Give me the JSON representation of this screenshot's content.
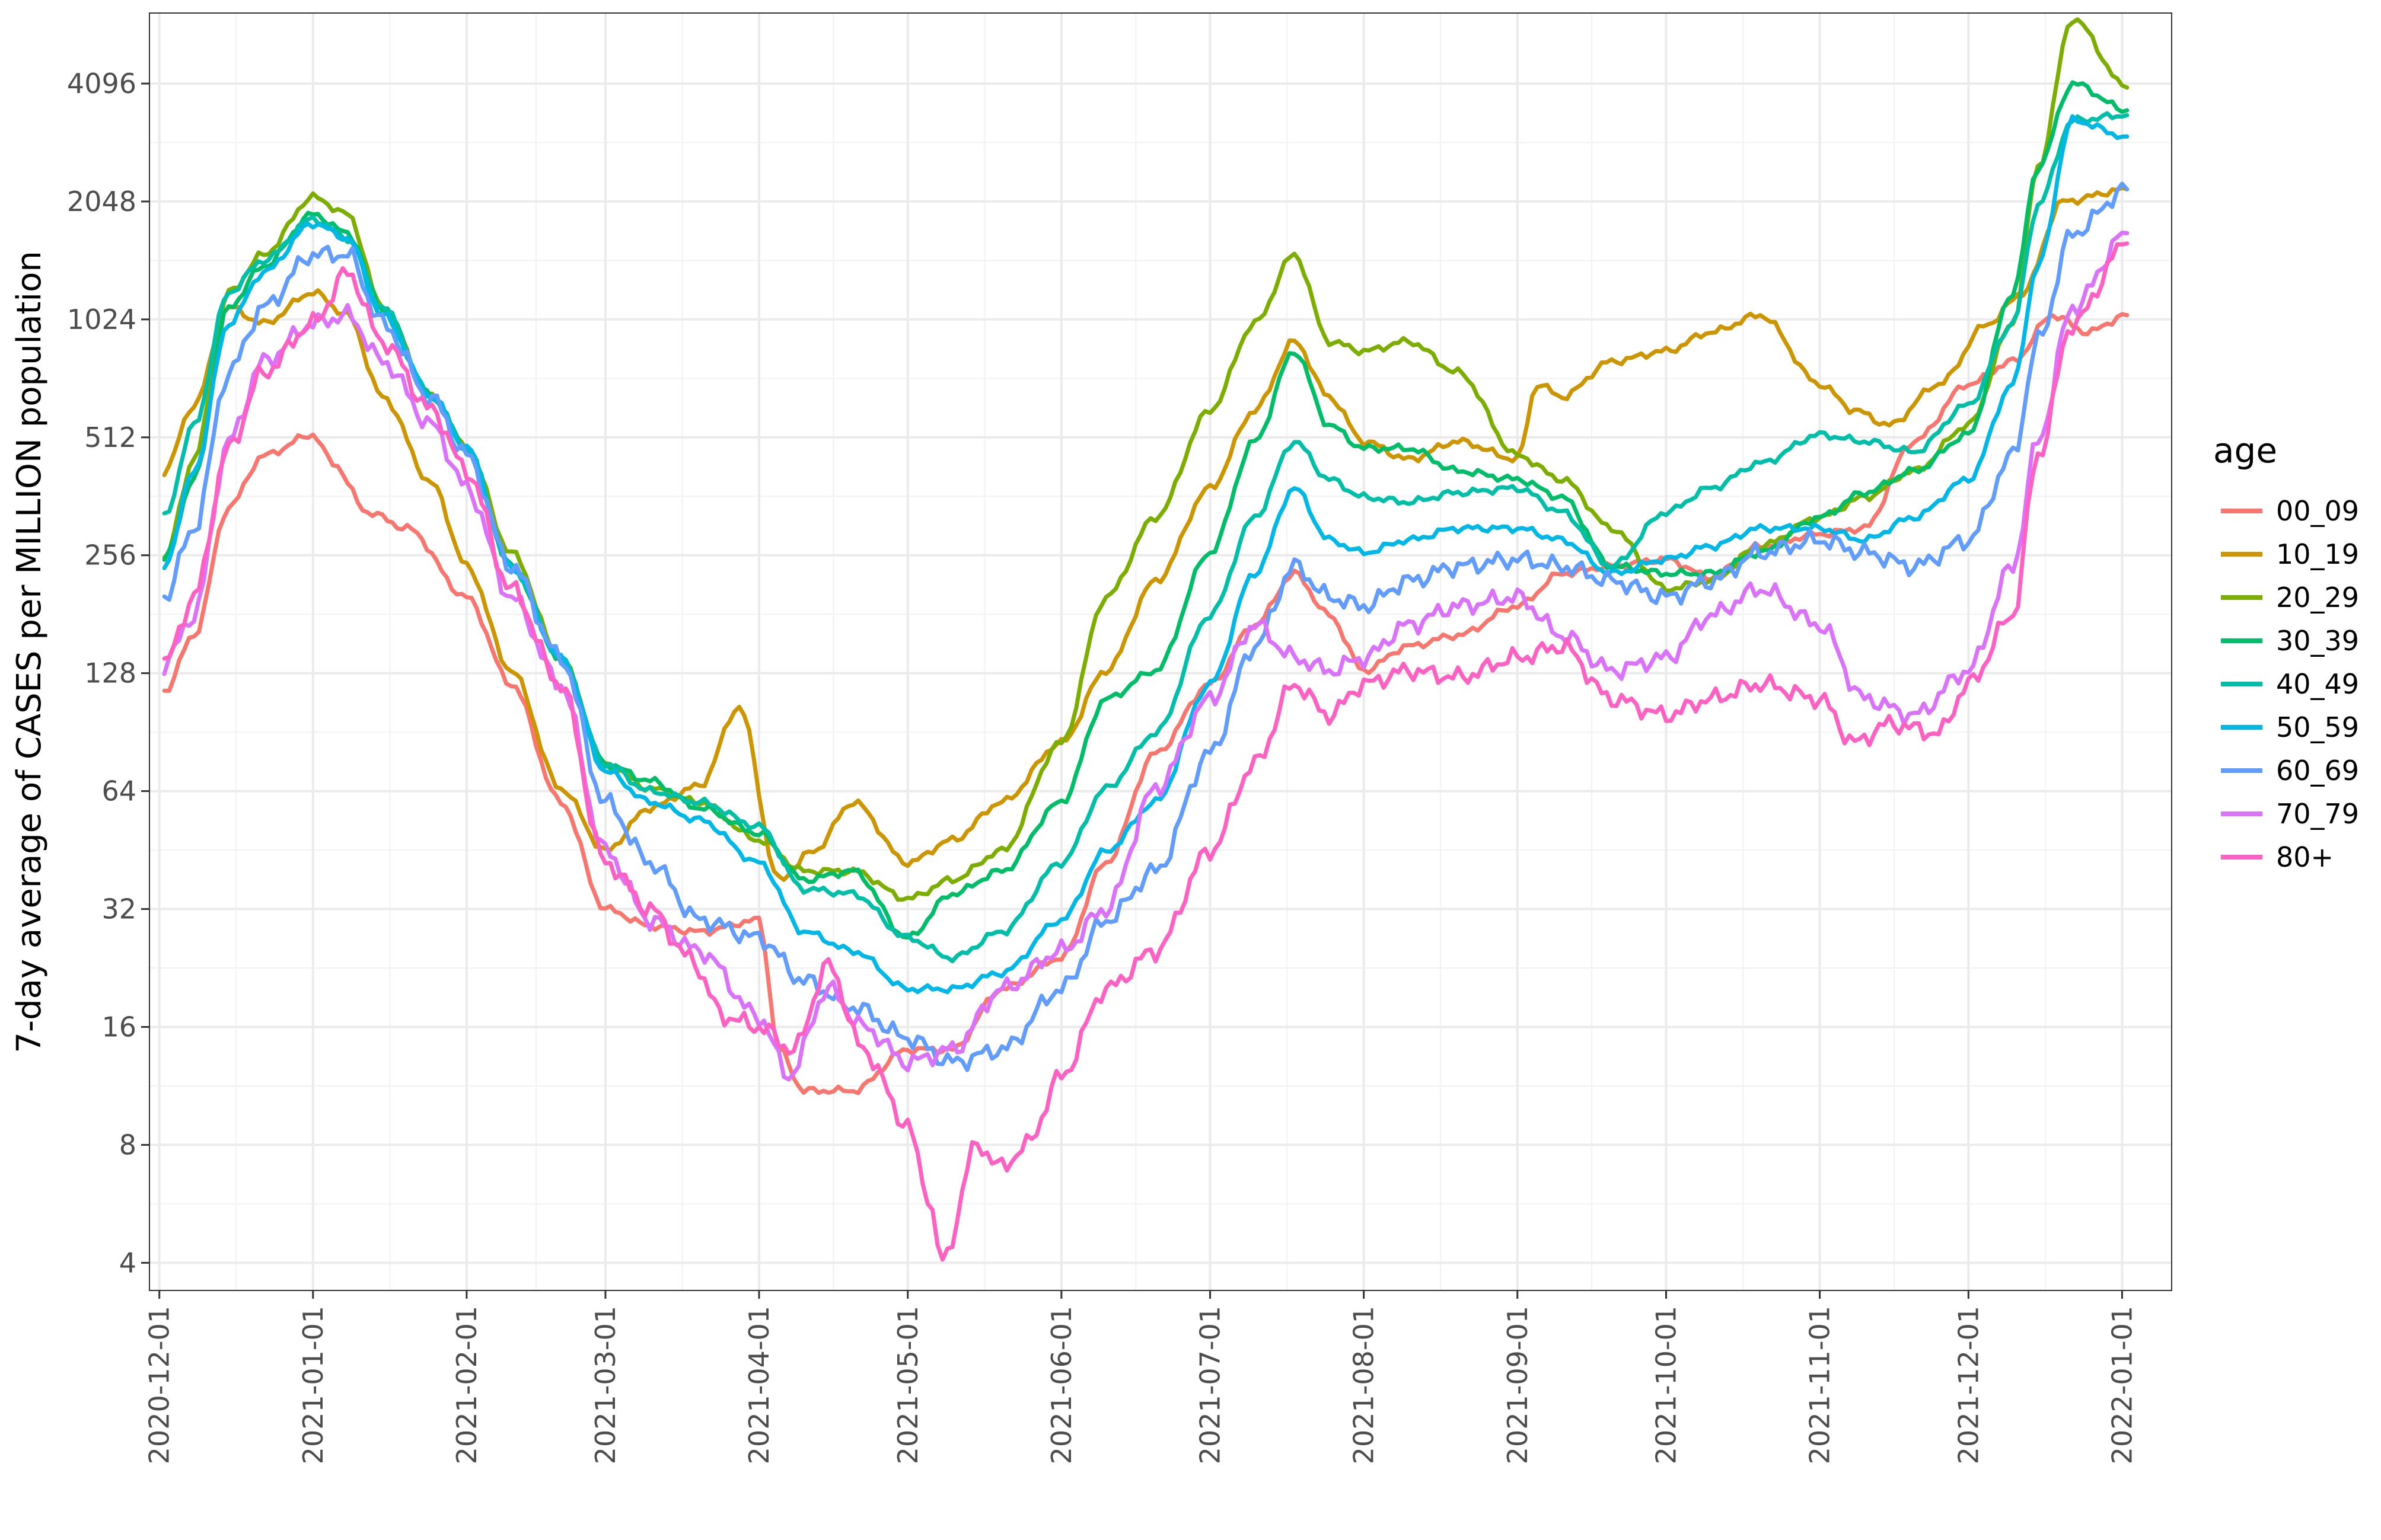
{
  "chart_data": {
    "type": "line",
    "title": "",
    "xlabel": "",
    "ylabel": "7-day average of CASES per MILLION population",
    "y_scale": "log2",
    "ylim": [
      3.4,
      6200
    ],
    "xlim": [
      "2020-11-29",
      "2022-01-11"
    ],
    "y_ticks": [
      4,
      8,
      16,
      32,
      64,
      128,
      256,
      512,
      1024,
      2048,
      4096
    ],
    "y_tick_labels": [
      "4",
      "8",
      "16",
      "32",
      "64",
      "128",
      "256",
      "512",
      "1024",
      "2048",
      "4096"
    ],
    "x_ticks": [
      "2020-12-01",
      "2021-01-01",
      "2021-02-01",
      "2021-03-01",
      "2021-04-01",
      "2021-05-01",
      "2021-06-01",
      "2021-07-01",
      "2021-08-01",
      "2021-09-01",
      "2021-10-01",
      "2021-11-01",
      "2021-12-01",
      "2022-01-01"
    ],
    "x_tick_labels": [
      "2020-12-01",
      "2021-01-01",
      "2021-02-01",
      "2021-03-01",
      "2021-04-01",
      "2021-05-01",
      "2021-06-01",
      "2021-07-01",
      "2021-08-01",
      "2021-09-01",
      "2021-10-01",
      "2021-11-01",
      "2021-12-01",
      "2022-01-01"
    ],
    "grid": true,
    "legend": {
      "title": "age",
      "position": "right"
    },
    "series": [
      {
        "name": "00_09",
        "color": "#F8766D",
        "x": [
          "2020-12-02",
          "2020-12-08",
          "2020-12-15",
          "2020-12-22",
          "2021-01-01",
          "2021-01-05",
          "2021-01-12",
          "2021-01-20",
          "2021-02-01",
          "2021-02-10",
          "2021-02-20",
          "2021-03-01",
          "2021-03-10",
          "2021-03-20",
          "2021-04-01",
          "2021-04-05",
          "2021-04-10",
          "2021-04-20",
          "2021-05-01",
          "2021-05-10",
          "2021-05-20",
          "2021-06-01",
          "2021-06-10",
          "2021-06-20",
          "2021-07-01",
          "2021-07-10",
          "2021-07-18",
          "2021-07-25",
          "2021-08-01",
          "2021-08-10",
          "2021-08-20",
          "2021-09-01",
          "2021-09-10",
          "2021-09-20",
          "2021-10-01",
          "2021-10-10",
          "2021-10-20",
          "2021-11-01",
          "2021-11-10",
          "2021-11-20",
          "2021-12-01",
          "2021-12-10",
          "2021-12-18",
          "2021-12-25",
          "2022-01-02"
        ],
        "values": [
          115,
          160,
          340,
          460,
          520,
          440,
          330,
          300,
          200,
          120,
          60,
          32,
          29,
          28,
          30,
          14,
          11,
          11,
          14,
          14,
          20,
          24,
          42,
          80,
          120,
          170,
          230,
          180,
          130,
          150,
          160,
          190,
          230,
          240,
          250,
          225,
          270,
          290,
          300,
          500,
          700,
          800,
          1050,
          950,
          1050
        ]
      },
      {
        "name": "10_19",
        "color": "#CD9600",
        "x": [
          "2020-12-02",
          "2020-12-08",
          "2020-12-15",
          "2020-12-22",
          "2021-01-01",
          "2021-01-08",
          "2021-01-15",
          "2021-01-25",
          "2021-02-01",
          "2021-02-10",
          "2021-02-20",
          "2021-03-01",
          "2021-03-10",
          "2021-03-20",
          "2021-03-28",
          "2021-04-05",
          "2021-04-12",
          "2021-04-20",
          "2021-05-01",
          "2021-05-10",
          "2021-05-20",
          "2021-06-01",
          "2021-06-10",
          "2021-06-20",
          "2021-07-01",
          "2021-07-10",
          "2021-07-18",
          "2021-07-25",
          "2021-08-01",
          "2021-08-10",
          "2021-08-20",
          "2021-09-01",
          "2021-09-05",
          "2021-09-10",
          "2021-09-20",
          "2021-10-01",
          "2021-10-10",
          "2021-10-20",
          "2021-11-01",
          "2021-11-08",
          "2021-11-15",
          "2021-11-25",
          "2021-12-05",
          "2021-12-12",
          "2021-12-20",
          "2022-01-02"
        ],
        "values": [
          420,
          620,
          1100,
          1000,
          1200,
          1050,
          650,
          390,
          240,
          130,
          65,
          45,
          58,
          66,
          105,
          38,
          45,
          60,
          42,
          48,
          60,
          85,
          130,
          220,
          380,
          600,
          900,
          650,
          500,
          450,
          500,
          450,
          700,
          650,
          800,
          850,
          950,
          1050,
          700,
          600,
          550,
          700,
          1000,
          1200,
          2048,
          2200
        ]
      },
      {
        "name": "20_29",
        "color": "#7CAE00",
        "x": [
          "2020-12-02",
          "2020-12-08",
          "2020-12-15",
          "2020-12-22",
          "2021-01-01",
          "2021-01-08",
          "2021-01-15",
          "2021-01-25",
          "2021-02-01",
          "2021-02-10",
          "2021-02-20",
          "2021-03-01",
          "2021-03-10",
          "2021-03-20",
          "2021-04-01",
          "2021-04-10",
          "2021-04-20",
          "2021-05-01",
          "2021-05-10",
          "2021-05-20",
          "2021-06-01",
          "2021-06-10",
          "2021-06-20",
          "2021-07-01",
          "2021-07-10",
          "2021-07-18",
          "2021-07-25",
          "2021-08-01",
          "2021-08-10",
          "2021-08-20",
          "2021-09-01",
          "2021-09-10",
          "2021-09-20",
          "2021-10-01",
          "2021-10-10",
          "2021-10-20",
          "2021-11-01",
          "2021-11-10",
          "2021-11-20",
          "2021-12-01",
          "2021-12-10",
          "2021-12-15",
          "2021-12-22",
          "2022-01-02"
        ],
        "values": [
          250,
          450,
          1200,
          1500,
          2100,
          1900,
          1100,
          650,
          480,
          260,
          140,
          75,
          65,
          60,
          48,
          40,
          40,
          34,
          38,
          45,
          85,
          200,
          320,
          600,
          1000,
          1500,
          900,
          850,
          900,
          750,
          460,
          400,
          300,
          210,
          220,
          270,
          320,
          360,
          420,
          550,
          1000,
          2500,
          6000,
          4000
        ]
      },
      {
        "name": "30_39",
        "color": "#00BE67",
        "x": [
          "2020-12-02",
          "2020-12-08",
          "2020-12-15",
          "2020-12-22",
          "2021-01-01",
          "2021-01-08",
          "2021-01-15",
          "2021-01-25",
          "2021-02-01",
          "2021-02-10",
          "2021-02-20",
          "2021-03-01",
          "2021-03-10",
          "2021-03-20",
          "2021-04-01",
          "2021-04-10",
          "2021-04-20",
          "2021-05-01",
          "2021-05-10",
          "2021-05-20",
          "2021-06-01",
          "2021-06-10",
          "2021-06-20",
          "2021-07-01",
          "2021-07-10",
          "2021-07-18",
          "2021-07-25",
          "2021-08-01",
          "2021-08-10",
          "2021-08-20",
          "2021-09-01",
          "2021-09-10",
          "2021-09-20",
          "2021-10-01",
          "2021-10-10",
          "2021-10-20",
          "2021-11-01",
          "2021-11-10",
          "2021-11-20",
          "2021-12-01",
          "2021-12-10",
          "2021-12-15",
          "2021-12-22",
          "2022-01-02"
        ],
        "values": [
          250,
          400,
          1100,
          1400,
          1900,
          1700,
          1100,
          650,
          480,
          240,
          140,
          75,
          68,
          58,
          50,
          38,
          40,
          27,
          35,
          40,
          60,
          110,
          130,
          260,
          500,
          850,
          550,
          480,
          480,
          420,
          400,
          360,
          240,
          230,
          230,
          260,
          320,
          370,
          420,
          520,
          1200,
          2500,
          4100,
          3500
        ]
      },
      {
        "name": "40_49",
        "color": "#00BFA9",
        "x": [
          "2020-12-02",
          "2020-12-08",
          "2020-12-15",
          "2020-12-22",
          "2021-01-01",
          "2021-01-08",
          "2021-01-15",
          "2021-01-25",
          "2021-02-01",
          "2021-02-10",
          "2021-02-20",
          "2021-03-01",
          "2021-03-10",
          "2021-03-20",
          "2021-04-01",
          "2021-04-10",
          "2021-04-20",
          "2021-05-01",
          "2021-05-10",
          "2021-05-20",
          "2021-06-01",
          "2021-06-10",
          "2021-06-20",
          "2021-07-01",
          "2021-07-10",
          "2021-07-18",
          "2021-07-25",
          "2021-08-01",
          "2021-08-10",
          "2021-08-20",
          "2021-09-01",
          "2021-09-10",
          "2021-09-20",
          "2021-10-01",
          "2021-10-10",
          "2021-10-20",
          "2021-11-01",
          "2021-11-10",
          "2021-11-20",
          "2021-12-01",
          "2021-12-10",
          "2021-12-15",
          "2021-12-22",
          "2022-01-02"
        ],
        "values": [
          320,
          550,
          1200,
          1450,
          1850,
          1650,
          1100,
          650,
          480,
          240,
          140,
          75,
          64,
          60,
          52,
          36,
          35,
          27,
          24,
          28,
          42,
          65,
          90,
          180,
          320,
          500,
          400,
          360,
          350,
          370,
          380,
          330,
          240,
          330,
          380,
          440,
          520,
          500,
          470,
          620,
          1000,
          2000,
          3300,
          3400
        ]
      },
      {
        "name": "50_59",
        "color": "#00B8E7",
        "x": [
          "2020-12-02",
          "2020-12-08",
          "2020-12-15",
          "2020-12-22",
          "2021-01-01",
          "2021-01-08",
          "2021-01-15",
          "2021-01-25",
          "2021-02-01",
          "2021-02-10",
          "2021-02-20",
          "2021-03-01",
          "2021-03-10",
          "2021-03-20",
          "2021-04-01",
          "2021-04-10",
          "2021-04-20",
          "2021-05-01",
          "2021-05-10",
          "2021-05-20",
          "2021-06-01",
          "2021-06-10",
          "2021-06-20",
          "2021-07-01",
          "2021-07-10",
          "2021-07-18",
          "2021-07-25",
          "2021-08-01",
          "2021-08-10",
          "2021-08-20",
          "2021-09-01",
          "2021-09-10",
          "2021-09-20",
          "2021-10-01",
          "2021-10-10",
          "2021-10-20",
          "2021-11-01",
          "2021-11-10",
          "2021-11-20",
          "2021-12-01",
          "2021-12-10",
          "2021-12-15",
          "2021-12-22",
          "2022-01-02"
        ],
        "values": [
          240,
          420,
          1000,
          1350,
          1800,
          1650,
          1050,
          650,
          480,
          240,
          140,
          72,
          60,
          54,
          42,
          28,
          25,
          20,
          20,
          22,
          30,
          45,
          60,
          120,
          230,
          380,
          280,
          260,
          280,
          300,
          300,
          280,
          230,
          250,
          270,
          300,
          300,
          280,
          320,
          400,
          700,
          1400,
          3300,
          3000
        ]
      },
      {
        "name": "60_69",
        "color": "#619CFF",
        "x": [
          "2020-12-02",
          "2020-12-08",
          "2020-12-15",
          "2020-12-22",
          "2021-01-01",
          "2021-01-08",
          "2021-01-15",
          "2021-01-25",
          "2021-02-01",
          "2021-02-10",
          "2021-02-20",
          "2021-03-01",
          "2021-03-10",
          "2021-03-20",
          "2021-04-01",
          "2021-04-10",
          "2021-04-20",
          "2021-05-01",
          "2021-05-10",
          "2021-05-20",
          "2021-06-01",
          "2021-06-10",
          "2021-06-20",
          "2021-07-01",
          "2021-07-10",
          "2021-07-18",
          "2021-07-25",
          "2021-08-01",
          "2021-08-10",
          "2021-08-20",
          "2021-09-01",
          "2021-09-10",
          "2021-09-20",
          "2021-10-01",
          "2021-10-10",
          "2021-10-20",
          "2021-11-01",
          "2021-11-10",
          "2021-11-20",
          "2021-12-01",
          "2021-12-10",
          "2021-12-15",
          "2021-12-22",
          "2022-01-02"
        ],
        "values": [
          200,
          300,
          750,
          1100,
          1500,
          1500,
          1000,
          640,
          460,
          240,
          140,
          60,
          42,
          30,
          27,
          21,
          18,
          15,
          13,
          14,
          20,
          30,
          40,
          80,
          150,
          240,
          200,
          190,
          220,
          240,
          250,
          240,
          220,
          200,
          220,
          260,
          280,
          260,
          240,
          280,
          460,
          900,
          1700,
          2200
        ]
      },
      {
        "name": "70_79",
        "color": "#DB72FB",
        "x": [
          "2020-12-02",
          "2020-12-08",
          "2020-12-15",
          "2020-12-22",
          "2021-01-01",
          "2021-01-08",
          "2021-01-15",
          "2021-01-25",
          "2021-02-01",
          "2021-02-10",
          "2021-02-20",
          "2021-03-01",
          "2021-03-10",
          "2021-03-20",
          "2021-04-01",
          "2021-04-07",
          "2021-04-15",
          "2021-04-22",
          "2021-05-01",
          "2021-05-10",
          "2021-05-20",
          "2021-06-01",
          "2021-06-10",
          "2021-06-20",
          "2021-07-01",
          "2021-07-10",
          "2021-07-18",
          "2021-07-25",
          "2021-08-01",
          "2021-08-10",
          "2021-08-20",
          "2021-09-01",
          "2021-09-10",
          "2021-09-20",
          "2021-10-01",
          "2021-10-10",
          "2021-10-20",
          "2021-11-01",
          "2021-11-10",
          "2021-11-20",
          "2021-12-01",
          "2021-12-10",
          "2021-12-15",
          "2021-12-22",
          "2022-01-02"
        ],
        "values": [
          135,
          180,
          500,
          800,
          1000,
          1050,
          800,
          550,
          380,
          200,
          120,
          45,
          30,
          25,
          17,
          12,
          20,
          16,
          13,
          14,
          20,
          25,
          32,
          65,
          110,
          170,
          140,
          130,
          140,
          170,
          190,
          200,
          160,
          130,
          140,
          180,
          210,
          170,
          110,
          100,
          130,
          240,
          500,
          1100,
          1700
        ]
      },
      {
        "name": "80+",
        "color": "#FF61C3",
        "x": [
          "2020-12-02",
          "2020-12-08",
          "2020-12-15",
          "2020-12-22",
          "2021-01-01",
          "2021-01-08",
          "2021-01-15",
          "2021-01-25",
          "2021-02-01",
          "2021-02-10",
          "2021-02-20",
          "2021-03-01",
          "2021-03-10",
          "2021-03-18",
          "2021-03-25",
          "2021-04-01",
          "2021-04-08",
          "2021-04-15",
          "2021-04-22",
          "2021-05-01",
          "2021-05-05",
          "2021-05-08",
          "2021-05-15",
          "2021-05-20",
          "2021-05-25",
          "2021-06-01",
          "2021-06-10",
          "2021-06-20",
          "2021-07-01",
          "2021-07-10",
          "2021-07-18",
          "2021-07-25",
          "2021-08-01",
          "2021-08-10",
          "2021-08-20",
          "2021-09-01",
          "2021-09-10",
          "2021-09-20",
          "2021-10-01",
          "2021-10-10",
          "2021-10-20",
          "2021-11-01",
          "2021-11-08",
          "2021-11-15",
          "2021-11-25",
          "2021-12-01",
          "2021-12-10",
          "2021-12-15",
          "2021-12-22",
          "2022-01-02"
        ],
        "values": [
          135,
          200,
          480,
          750,
          1000,
          1350,
          900,
          600,
          420,
          210,
          120,
          42,
          32,
          24,
          17,
          16,
          14,
          23,
          14,
          9,
          6,
          4,
          8,
          7,
          8,
          12,
          20,
          25,
          45,
          75,
          120,
          100,
          120,
          130,
          125,
          140,
          150,
          110,
          100,
          110,
          120,
          110,
          85,
          95,
          90,
          120,
          180,
          460,
          1000,
          1600
        ]
      }
    ]
  }
}
